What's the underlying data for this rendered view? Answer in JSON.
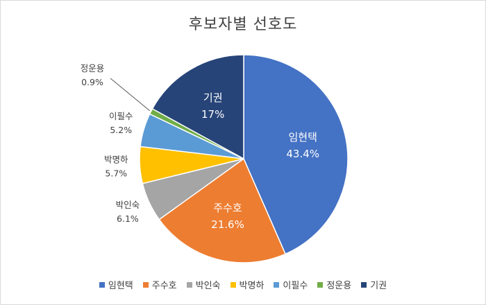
{
  "chart_data": {
    "type": "pie",
    "title": "후보자별 선호도",
    "slices": [
      {
        "name": "임현택",
        "value": 43.4,
        "label": "43.4%",
        "color": "#4472c4"
      },
      {
        "name": "주수호",
        "value": 21.6,
        "label": "21.6%",
        "color": "#ed7d31"
      },
      {
        "name": "박인숙",
        "value": 6.1,
        "label": "6.1%",
        "color": "#a5a5a5"
      },
      {
        "name": "박명하",
        "value": 5.7,
        "label": "5.7%",
        "color": "#ffc000"
      },
      {
        "name": "이필수",
        "value": 5.2,
        "label": "5.2%",
        "color": "#5b9bd5"
      },
      {
        "name": "정운용",
        "value": 0.9,
        "label": "0.9%",
        "color": "#70ad47"
      },
      {
        "name": "기권",
        "value": 17,
        "label": "17%",
        "color": "#264478"
      }
    ],
    "legend_position": "bottom",
    "start_angle": "12 o'clock, clockwise"
  }
}
